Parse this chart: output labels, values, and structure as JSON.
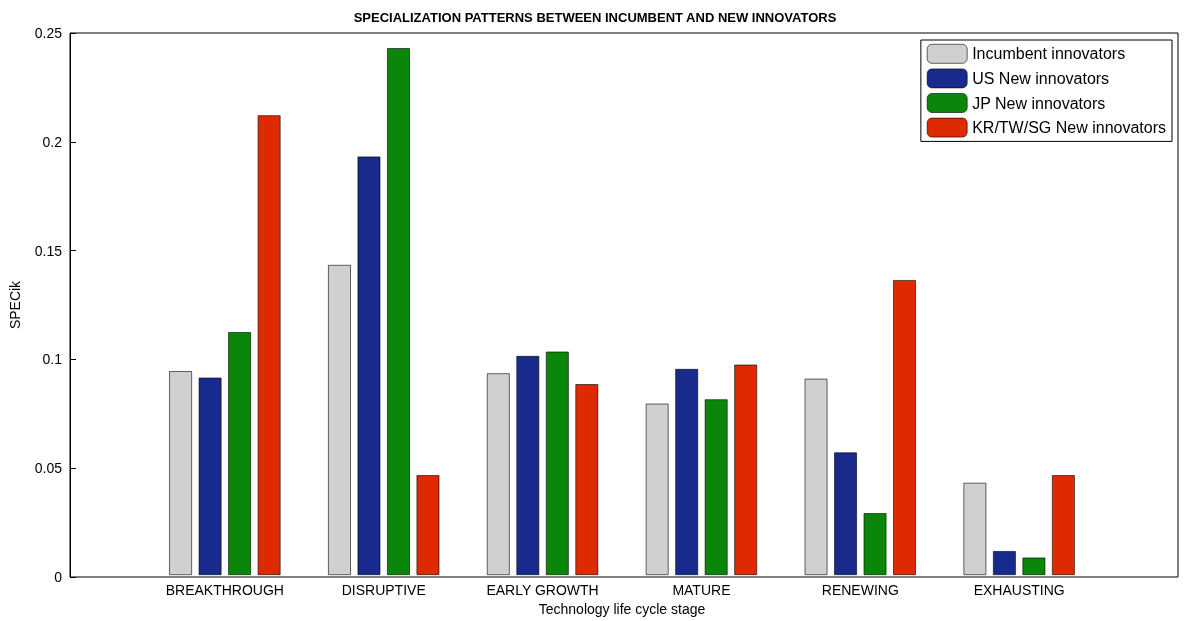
{
  "chart_data": {
    "type": "bar",
    "title": "SPECIALIZATION PATTERNS BETWEEN INCUMBENT AND NEW INNOVATORS",
    "xlabel": "Technology life cycle stage",
    "ylabel": "SPECik",
    "categories": [
      "BREAKTHROUGH",
      "DISRUPTIVE",
      "EARLY GROWTH",
      "MATURE",
      "RENEWING",
      "EXHAUSTING"
    ],
    "series": [
      {
        "name": "Incumbent innovators",
        "color": "#d0d0d0",
        "values": [
          0.094,
          0.143,
          0.093,
          0.079,
          0.0905,
          0.0425
        ]
      },
      {
        "name": "US New innovators",
        "color": "#182a8c",
        "values": [
          0.091,
          0.193,
          0.101,
          0.095,
          0.0565,
          0.011
        ]
      },
      {
        "name": "JP New innovators",
        "color": "#0a860a",
        "values": [
          0.112,
          0.243,
          0.103,
          0.081,
          0.0285,
          0.008
        ]
      },
      {
        "name": "KR/TW/SG New innovators",
        "color": "#dd2a00",
        "values": [
          0.212,
          0.046,
          0.088,
          0.097,
          0.136,
          0.046
        ]
      }
    ],
    "ylim": [
      0,
      0.25
    ],
    "yticks": [
      0,
      0.05,
      0.1,
      0.15,
      0.2,
      0.25
    ],
    "grid": false,
    "legend": "top right"
  }
}
